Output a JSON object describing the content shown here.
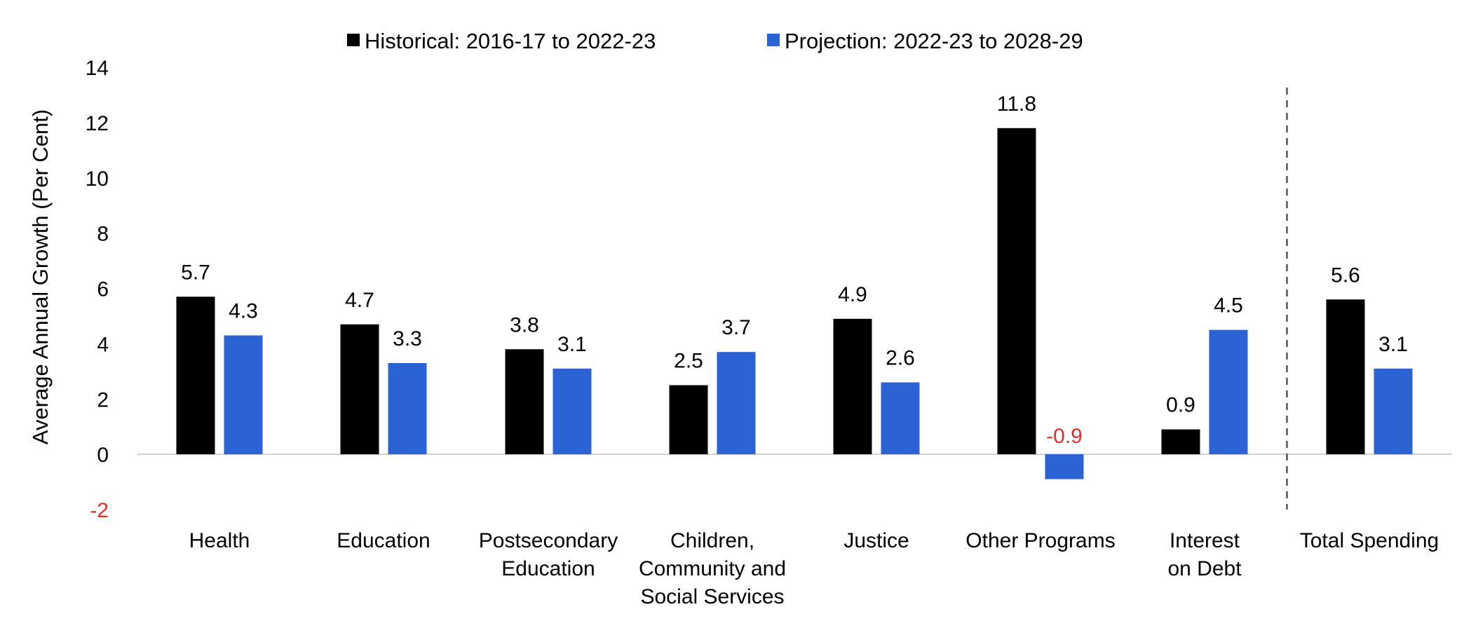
{
  "chart_data": {
    "type": "bar",
    "categories": [
      [
        "Health"
      ],
      [
        "Education"
      ],
      [
        "Postsecondary",
        "Education"
      ],
      [
        "Children,",
        "Community and",
        "Social Services"
      ],
      [
        "Justice"
      ],
      [
        "Other Programs"
      ],
      [
        "Interest",
        "on Debt"
      ],
      [
        "Total Spending"
      ]
    ],
    "series": [
      {
        "name": "Historical: 2016-17 to 2022-23",
        "color": "#000000",
        "values": [
          5.7,
          4.7,
          3.8,
          2.5,
          4.9,
          11.8,
          0.9,
          5.6
        ]
      },
      {
        "name": "Projection: 2022-23 to 2028-29",
        "color": "#2b63d4",
        "values": [
          4.3,
          3.3,
          3.1,
          3.7,
          2.6,
          -0.9,
          4.5,
          3.1
        ]
      }
    ],
    "ylabel": "Average Annual Growth (Per Cent)",
    "ylim": [
      -2,
      14
    ],
    "yticks": [
      "-2",
      "0",
      "2",
      "4",
      "6",
      "8",
      "10",
      "12",
      "14"
    ],
    "negative_color": "#e0302a",
    "separator_before_category": 7,
    "legend_position": "top-center",
    "grid": false
  }
}
